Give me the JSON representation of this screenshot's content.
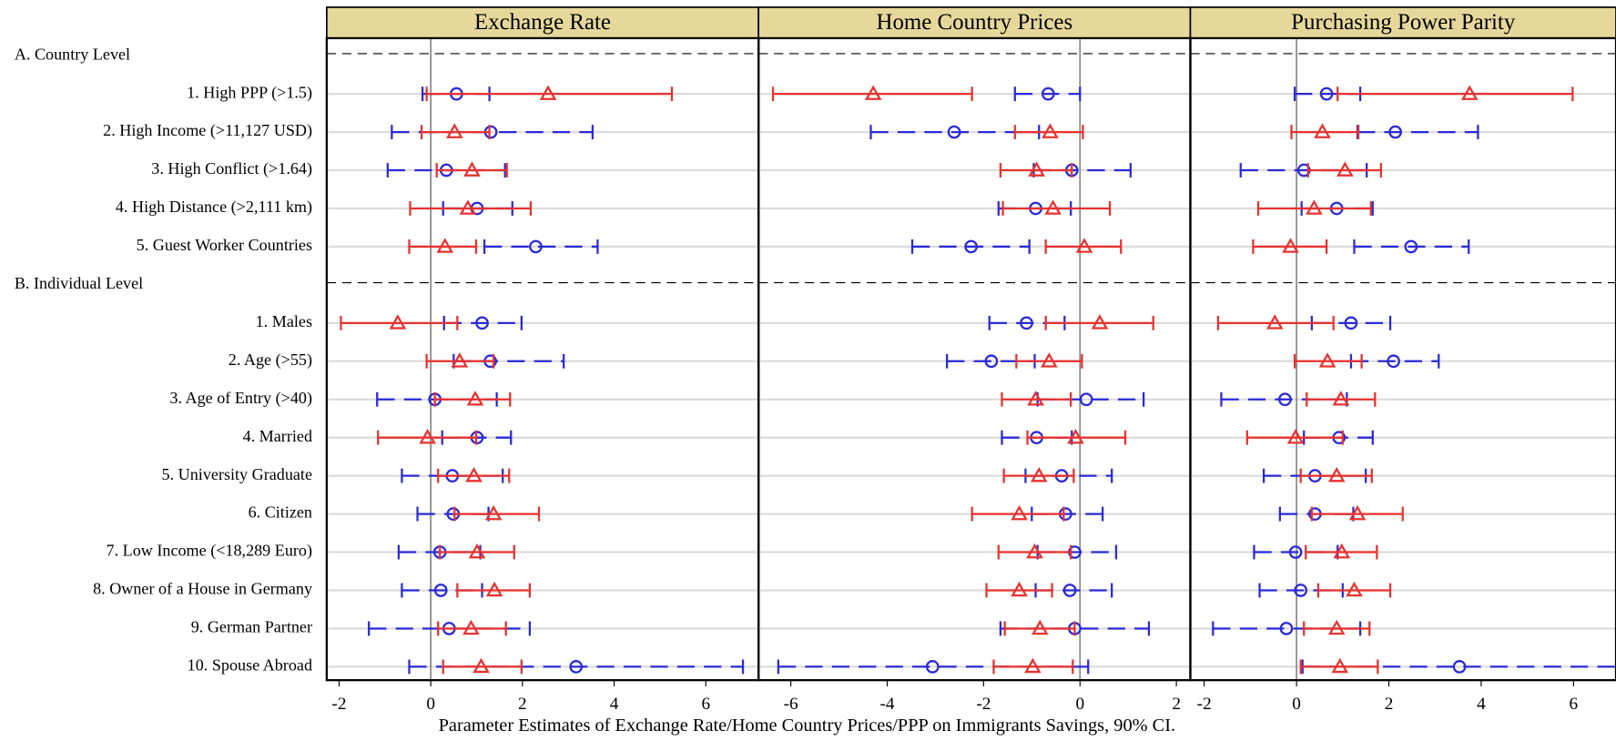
{
  "chart_data": {
    "type": "errorbar",
    "xlabel": "Parameter Estimates of Exchange Rate/Home Country Prices/PPP on Immigrants Savings, 90% CI.",
    "categories": [
      "A. Country Level",
      "1. High PPP (>1.5)",
      "2. High Income (>11,127 USD)",
      "3. High Conflict (>1.64)",
      "4. High Distance (>2,111 km)",
      "5. Guest Worker Countries",
      "B. Individual Level",
      "1. Males",
      "2. Age (>55)",
      "3. Age of Entry (>40)",
      "4. Married",
      "5. University Graduate",
      "6. Citizen",
      "7. Low Income (<18,289 Euro)",
      "8. Owner of a House in Germany",
      "9. German Partner",
      "10. Spouse Abroad"
    ],
    "panels": [
      {
        "title": "Exchange Rate",
        "xlim": [
          -2.27,
          7.15
        ],
        "xticks": [
          -2,
          0,
          2,
          4,
          6
        ],
        "series": [
          {
            "color": "#2a2ad8",
            "marker": "circle",
            "dashed": true,
            "values": [
              null,
              0.56,
              1.31,
              0.34,
              1.01,
              2.29,
              null,
              1.12,
              1.3,
              0.09,
              1.01,
              0.47,
              0.49,
              0.2,
              0.22,
              0.4,
              3.17
            ],
            "ci_low": [
              null,
              -0.18,
              -0.85,
              -0.94,
              0.27,
              1.17,
              null,
              0.29,
              0.5,
              -1.17,
              0.25,
              -0.63,
              -0.29,
              -0.7,
              -0.63,
              -1.35,
              -0.47
            ],
            "ci_high": [
              null,
              1.28,
              3.53,
              1.62,
              1.78,
              3.64,
              null,
              1.98,
              2.9,
              1.44,
              1.75,
              1.57,
              1.26,
              1.08,
              1.12,
              2.16,
              6.81
            ]
          },
          {
            "color": "#e8322e",
            "marker": "triangle",
            "dashed": false,
            "values": [
              null,
              2.56,
              0.52,
              0.9,
              0.81,
              0.31,
              null,
              -0.72,
              0.63,
              0.97,
              -0.07,
              0.94,
              1.37,
              1.01,
              1.39,
              0.88,
              1.1
            ],
            "ci_low": [
              null,
              -0.09,
              -0.2,
              0.13,
              -0.45,
              -0.47,
              null,
              -1.96,
              -0.09,
              0.09,
              -1.15,
              0.16,
              0.52,
              0.2,
              0.58,
              0.16,
              0.27
            ],
            "ci_high": [
              null,
              5.26,
              1.28,
              1.66,
              2.18,
              0.99,
              null,
              0.58,
              1.37,
              1.73,
              0.99,
              1.71,
              2.36,
              1.82,
              2.16,
              1.64,
              1.98
            ]
          }
        ]
      },
      {
        "title": "Home Country Prices",
        "xlim": [
          -6.67,
          2.29
        ],
        "xticks": [
          -6,
          -4,
          -2,
          0,
          2
        ],
        "series": [
          {
            "color": "#2a2ad8",
            "marker": "circle",
            "dashed": true,
            "values": [
              null,
              -0.66,
              -2.61,
              -0.17,
              -0.92,
              -2.26,
              null,
              -1.11,
              -1.84,
              0.13,
              -0.9,
              -0.38,
              -0.3,
              -0.11,
              -0.21,
              -0.11,
              -3.06
            ],
            "ci_low": [
              null,
              -1.35,
              -4.34,
              -0.96,
              -1.69,
              -3.48,
              null,
              -1.88,
              -2.76,
              -0.88,
              -1.62,
              -1.13,
              -1.0,
              -0.88,
              -0.92,
              -1.65,
              -6.26
            ],
            "ci_high": [
              null,
              0,
              -0.85,
              1.05,
              -0.19,
              -1.05,
              null,
              -0.32,
              -0.94,
              1.32,
              -0.17,
              0.66,
              0.47,
              0.75,
              0.66,
              1.43,
              0.17
            ]
          },
          {
            "color": "#e8322e",
            "marker": "triangle",
            "dashed": false,
            "values": [
              null,
              -4.29,
              -0.62,
              -0.9,
              -0.56,
              0.09,
              null,
              0.41,
              -0.64,
              -0.92,
              -0.09,
              -0.85,
              -1.26,
              -0.94,
              -1.26,
              -0.83,
              -0.98
            ],
            "ci_low": [
              null,
              -6.37,
              -1.35,
              -1.65,
              -1.6,
              -0.71,
              null,
              -0.71,
              -1.32,
              -1.62,
              -1.09,
              -1.58,
              -2.24,
              -1.69,
              -1.94,
              -1.56,
              -1.79
            ],
            "ci_high": [
              null,
              -2.24,
              0.06,
              -0.17,
              0.62,
              0.85,
              null,
              1.52,
              0.04,
              -0.19,
              0.94,
              -0.13,
              -0.34,
              -0.19,
              -0.58,
              -0.11,
              -0.15
            ]
          }
        ]
      },
      {
        "title": "Purchasing Power Parity",
        "xlim": [
          -2.3,
          6.92
        ],
        "xticks": [
          -2,
          0,
          2,
          4,
          6
        ],
        "series": [
          {
            "color": "#2a2ad8",
            "marker": "circle",
            "dashed": true,
            "values": [
              null,
              0.65,
              2.14,
              0.16,
              0.87,
              2.48,
              null,
              1.18,
              2.1,
              -0.25,
              0.92,
              0.4,
              0.4,
              -0.02,
              0.09,
              -0.22,
              3.53
            ],
            "ci_low": [
              null,
              -0.04,
              1.32,
              -1.21,
              0.11,
              1.25,
              null,
              0.33,
              1.18,
              -1.63,
              0.16,
              -0.71,
              -0.36,
              -0.92,
              -0.8,
              -1.81,
              0.13
            ],
            "ci_high": [
              null,
              1.38,
              3.93,
              1.52,
              1.65,
              3.73,
              null,
              2.03,
              3.08,
              1.09,
              1.65,
              1.5,
              1.23,
              0.89,
              1.0,
              1.38,
              7.0
            ]
          },
          {
            "color": "#e8322e",
            "marker": "triangle",
            "dashed": false,
            "values": [
              null,
              3.75,
              0.56,
              1.05,
              0.38,
              -0.13,
              null,
              -0.47,
              0.67,
              0.96,
              -0.02,
              0.87,
              1.32,
              0.98,
              1.25,
              0.87,
              0.94
            ],
            "ci_low": [
              null,
              0.89,
              -0.11,
              0.25,
              -0.83,
              -0.94,
              null,
              -1.7,
              -0.04,
              0.22,
              -1.07,
              0.09,
              0.33,
              0.2,
              0.47,
              0.16,
              0.09
            ],
            "ci_high": [
              null,
              5.98,
              1.34,
              1.83,
              1.61,
              0.65,
              null,
              0.8,
              1.41,
              1.7,
              1.0,
              1.63,
              2.3,
              1.74,
              2.03,
              1.58,
              1.76
            ]
          }
        ]
      }
    ]
  }
}
